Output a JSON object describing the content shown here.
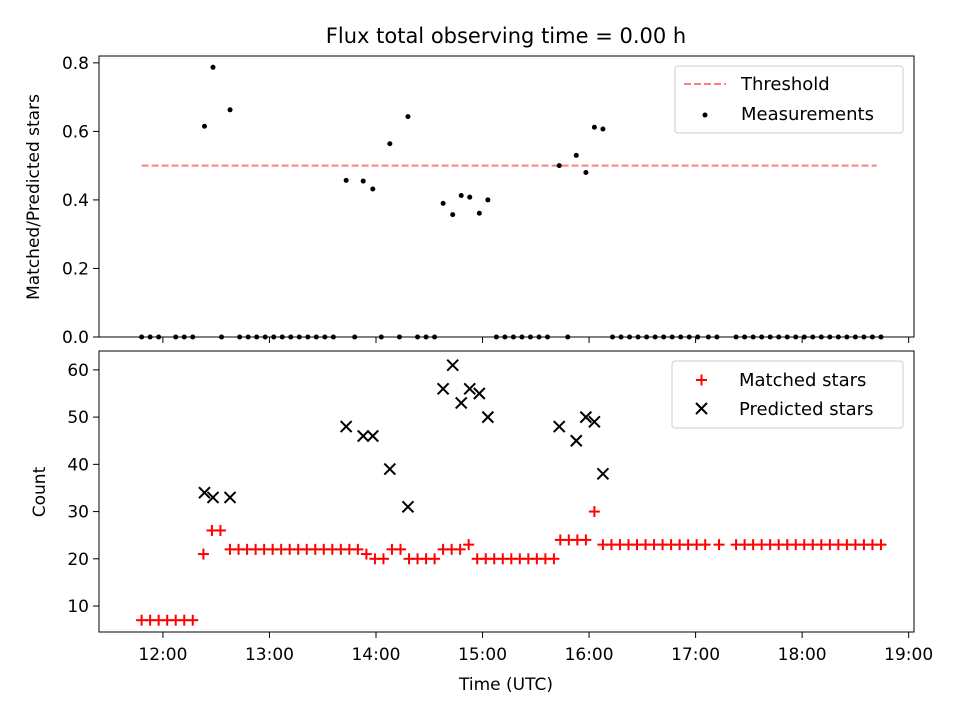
{
  "chart_data": [
    {
      "type": "scatter",
      "title": "Flux total observing time = 0.00 h",
      "xlabel": "",
      "ylabel": "Matched/Predicted stars",
      "ylim": [
        0,
        0.82
      ],
      "yticks": [
        "0.0",
        "0.2",
        "0.4",
        "0.6",
        "0.8"
      ],
      "yticks_values": [
        0,
        0.2,
        0.4,
        0.6,
        0.8
      ],
      "xlim": [
        11.4,
        19.05
      ],
      "grid": false,
      "legend_position": "top-right",
      "threshold": {
        "name": "Threshold",
        "value": 0.5,
        "x_start": 11.8,
        "x_end": 18.7,
        "color": "#ff7f7f",
        "style": "dashed"
      },
      "series": [
        {
          "name": "Measurements",
          "color": "#000000",
          "marker": "dot",
          "points": [
            [
              11.8,
              0
            ],
            [
              11.88,
              0
            ],
            [
              11.96,
              0
            ],
            [
              12.12,
              0
            ],
            [
              12.2,
              0
            ],
            [
              12.28,
              0
            ],
            [
              12.39,
              0.615
            ],
            [
              12.47,
              0.787
            ],
            [
              12.63,
              0.663
            ],
            [
              12.55,
              0
            ],
            [
              12.72,
              0
            ],
            [
              12.8,
              0
            ],
            [
              12.88,
              0
            ],
            [
              12.96,
              0
            ],
            [
              13.04,
              0
            ],
            [
              13.12,
              0
            ],
            [
              13.2,
              0
            ],
            [
              13.28,
              0
            ],
            [
              13.36,
              0
            ],
            [
              13.44,
              0
            ],
            [
              13.52,
              0
            ],
            [
              13.6,
              0
            ],
            [
              13.72,
              0.457
            ],
            [
              13.8,
              0
            ],
            [
              13.88,
              0.455
            ],
            [
              13.97,
              0.432
            ],
            [
              14.05,
              0
            ],
            [
              14.13,
              0.564
            ],
            [
              14.22,
              0
            ],
            [
              14.3,
              0.643
            ],
            [
              14.39,
              0
            ],
            [
              14.47,
              0
            ],
            [
              14.55,
              0
            ],
            [
              14.63,
              0.39
            ],
            [
              14.72,
              0.357
            ],
            [
              14.8,
              0.413
            ],
            [
              14.88,
              0.408
            ],
            [
              14.97,
              0.361
            ],
            [
              15.05,
              0.4
            ],
            [
              15.13,
              0
            ],
            [
              15.21,
              0
            ],
            [
              15.29,
              0
            ],
            [
              15.37,
              0
            ],
            [
              15.45,
              0
            ],
            [
              15.53,
              0
            ],
            [
              15.61,
              0
            ],
            [
              15.72,
              0.5
            ],
            [
              15.8,
              0
            ],
            [
              15.88,
              0.53
            ],
            [
              15.97,
              0.48
            ],
            [
              16.05,
              0.612
            ],
            [
              16.13,
              0.607
            ],
            [
              16.22,
              0
            ],
            [
              16.3,
              0
            ],
            [
              16.38,
              0
            ],
            [
              16.46,
              0
            ],
            [
              16.54,
              0
            ],
            [
              16.62,
              0
            ],
            [
              16.7,
              0
            ],
            [
              16.78,
              0
            ],
            [
              16.86,
              0
            ],
            [
              16.94,
              0
            ],
            [
              17.02,
              0
            ],
            [
              17.12,
              0
            ],
            [
              17.2,
              0
            ],
            [
              17.38,
              0
            ],
            [
              17.46,
              0
            ],
            [
              17.54,
              0
            ],
            [
              17.62,
              0
            ],
            [
              17.7,
              0
            ],
            [
              17.78,
              0
            ],
            [
              17.86,
              0
            ],
            [
              17.94,
              0
            ],
            [
              18.02,
              0
            ],
            [
              18.1,
              0
            ],
            [
              18.18,
              0
            ],
            [
              18.26,
              0
            ],
            [
              18.34,
              0
            ],
            [
              18.42,
              0
            ],
            [
              18.5,
              0
            ],
            [
              18.58,
              0
            ],
            [
              18.66,
              0
            ],
            [
              18.74,
              0
            ]
          ]
        }
      ]
    },
    {
      "type": "scatter",
      "title": "",
      "xlabel": "Time (UTC)",
      "ylabel": "Count",
      "ylim": [
        4.5,
        64
      ],
      "yticks": [
        "10",
        "20",
        "30",
        "40",
        "50",
        "60"
      ],
      "yticks_values": [
        10,
        20,
        30,
        40,
        50,
        60
      ],
      "xlim": [
        11.4,
        19.05
      ],
      "xticks": [
        "12:00",
        "13:00",
        "14:00",
        "15:00",
        "16:00",
        "17:00",
        "18:00",
        "19:00"
      ],
      "xticks_values": [
        12,
        13,
        14,
        15,
        16,
        17,
        18,
        19
      ],
      "grid": false,
      "legend_position": "top-right",
      "series": [
        {
          "name": "Matched stars",
          "color": "#ff0000",
          "marker": "plus",
          "points": [
            [
              11.8,
              7
            ],
            [
              11.88,
              7
            ],
            [
              11.96,
              7
            ],
            [
              12.04,
              7
            ],
            [
              12.12,
              7
            ],
            [
              12.2,
              7
            ],
            [
              12.28,
              7
            ],
            [
              12.38,
              21
            ],
            [
              12.46,
              26
            ],
            [
              12.54,
              26
            ],
            [
              12.63,
              22
            ],
            [
              12.71,
              22
            ],
            [
              12.79,
              22
            ],
            [
              12.87,
              22
            ],
            [
              12.95,
              22
            ],
            [
              13.03,
              22
            ],
            [
              13.11,
              22
            ],
            [
              13.19,
              22
            ],
            [
              13.27,
              22
            ],
            [
              13.35,
              22
            ],
            [
              13.43,
              22
            ],
            [
              13.51,
              22
            ],
            [
              13.59,
              22
            ],
            [
              13.67,
              22
            ],
            [
              13.75,
              22
            ],
            [
              13.83,
              22
            ],
            [
              13.91,
              21
            ],
            [
              13.99,
              20
            ],
            [
              14.07,
              20
            ],
            [
              14.15,
              22
            ],
            [
              14.23,
              22
            ],
            [
              14.31,
              20
            ],
            [
              14.39,
              20
            ],
            [
              14.47,
              20
            ],
            [
              14.55,
              20
            ],
            [
              14.63,
              22
            ],
            [
              14.71,
              22
            ],
            [
              14.79,
              22
            ],
            [
              14.87,
              23
            ],
            [
              14.95,
              20
            ],
            [
              15.03,
              20
            ],
            [
              15.11,
              20
            ],
            [
              15.19,
              20
            ],
            [
              15.27,
              20
            ],
            [
              15.35,
              20
            ],
            [
              15.43,
              20
            ],
            [
              15.51,
              20
            ],
            [
              15.59,
              20
            ],
            [
              15.67,
              20
            ],
            [
              15.73,
              24
            ],
            [
              15.81,
              24
            ],
            [
              15.89,
              24
            ],
            [
              15.97,
              24
            ],
            [
              16.05,
              30
            ],
            [
              16.13,
              23
            ],
            [
              16.21,
              23
            ],
            [
              16.29,
              23
            ],
            [
              16.37,
              23
            ],
            [
              16.45,
              23
            ],
            [
              16.53,
              23
            ],
            [
              16.61,
              23
            ],
            [
              16.69,
              23
            ],
            [
              16.77,
              23
            ],
            [
              16.85,
              23
            ],
            [
              16.93,
              23
            ],
            [
              17.01,
              23
            ],
            [
              17.09,
              23
            ],
            [
              17.22,
              23
            ],
            [
              17.38,
              23
            ],
            [
              17.46,
              23
            ],
            [
              17.54,
              23
            ],
            [
              17.62,
              23
            ],
            [
              17.7,
              23
            ],
            [
              17.78,
              23
            ],
            [
              17.86,
              23
            ],
            [
              17.94,
              23
            ],
            [
              18.02,
              23
            ],
            [
              18.1,
              23
            ],
            [
              18.18,
              23
            ],
            [
              18.26,
              23
            ],
            [
              18.34,
              23
            ],
            [
              18.42,
              23
            ],
            [
              18.5,
              23
            ],
            [
              18.58,
              23
            ],
            [
              18.66,
              23
            ],
            [
              18.74,
              23
            ]
          ]
        },
        {
          "name": "Predicted stars",
          "color": "#000000",
          "marker": "x",
          "points": [
            [
              12.39,
              34
            ],
            [
              12.47,
              33
            ],
            [
              12.63,
              33
            ],
            [
              13.72,
              48
            ],
            [
              13.88,
              46
            ],
            [
              13.97,
              46
            ],
            [
              14.13,
              39
            ],
            [
              14.3,
              31
            ],
            [
              14.63,
              56
            ],
            [
              14.72,
              61
            ],
            [
              14.8,
              53
            ],
            [
              14.88,
              56
            ],
            [
              14.97,
              55
            ],
            [
              15.05,
              50
            ],
            [
              15.72,
              48
            ],
            [
              15.88,
              45
            ],
            [
              15.97,
              50
            ],
            [
              16.05,
              49
            ],
            [
              16.13,
              38
            ]
          ]
        }
      ]
    }
  ]
}
